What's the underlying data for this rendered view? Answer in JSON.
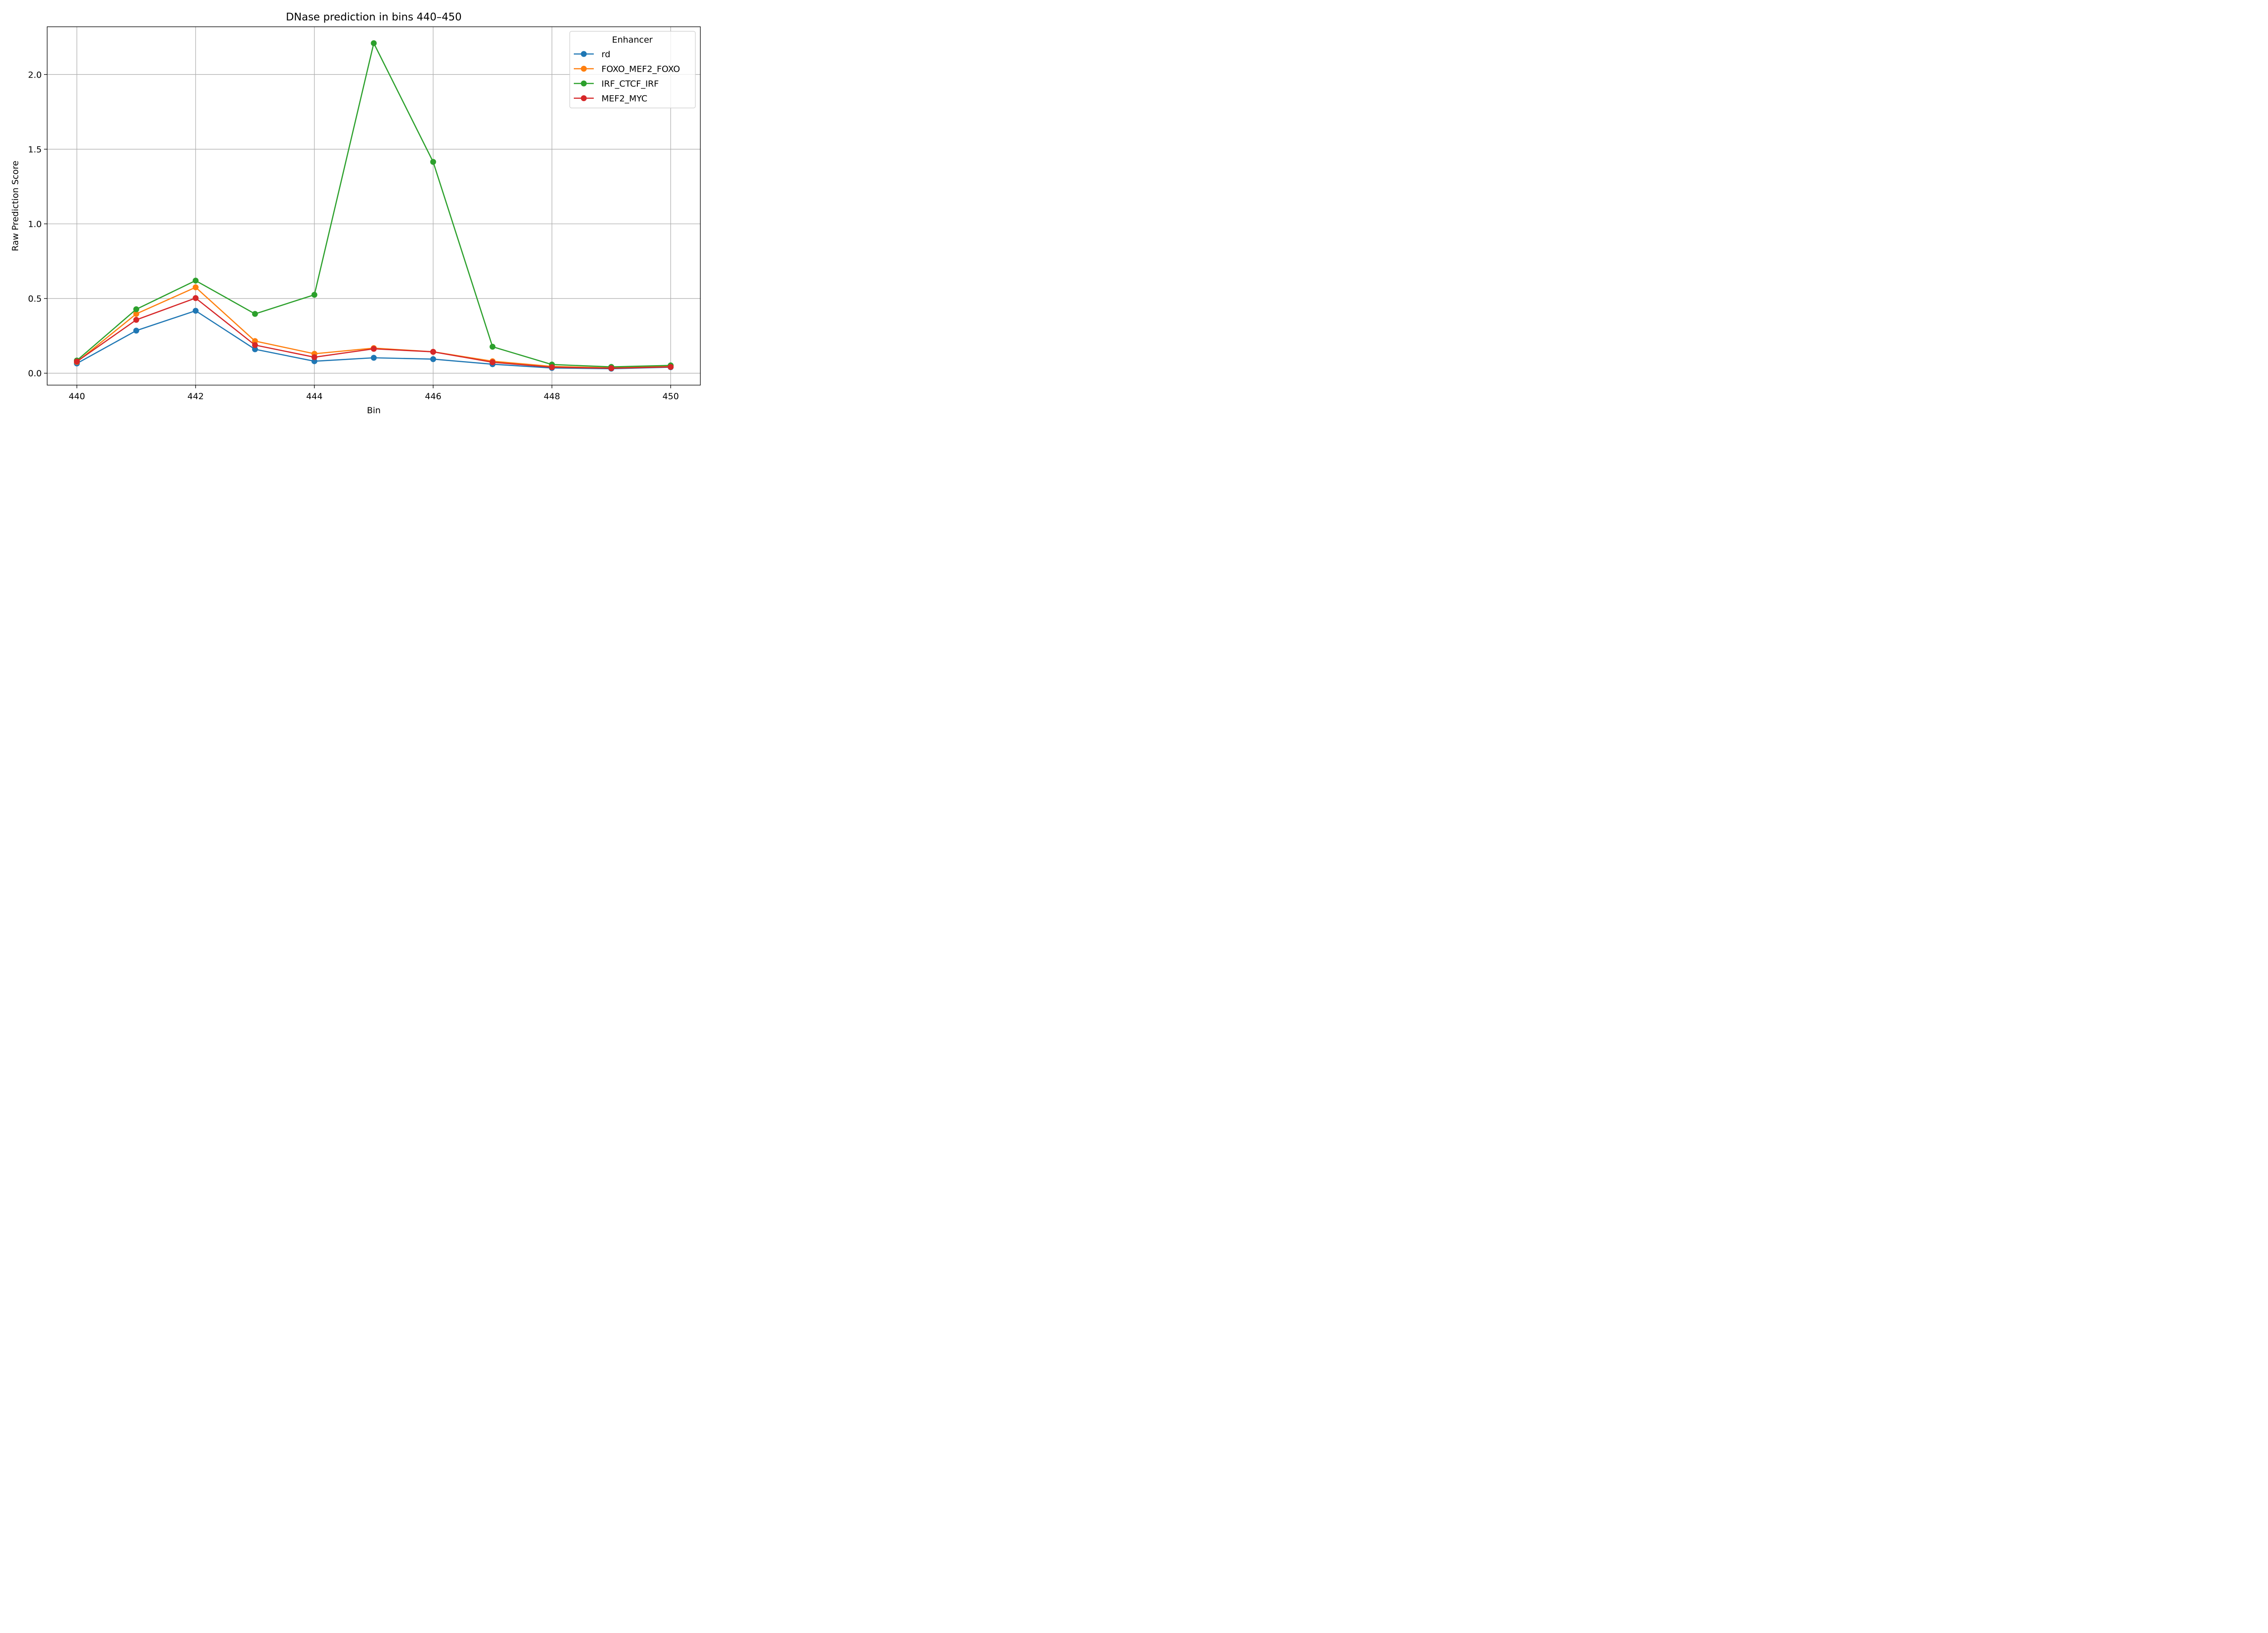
{
  "chart_data": {
    "type": "line",
    "title": "DNase prediction in bins 440–450",
    "xlabel": "Bin",
    "ylabel": "Raw Prediction Score",
    "x": [
      440,
      441,
      442,
      443,
      444,
      445,
      446,
      447,
      448,
      449,
      450
    ],
    "xticks": [
      "440",
      "442",
      "444",
      "446",
      "448",
      "450"
    ],
    "yticks": [
      "0.0",
      "0.5",
      "1.0",
      "1.5",
      "2.0"
    ],
    "xlim": [
      439.5,
      450.5
    ],
    "ylim": [
      -0.08,
      2.32
    ],
    "grid": true,
    "legend": {
      "title": "Enhancer",
      "placement": "top-right"
    },
    "series": [
      {
        "name": "rd",
        "color": "#1f77b4",
        "values": [
          0.065,
          0.285,
          0.418,
          0.16,
          0.08,
          0.103,
          0.094,
          0.06,
          0.035,
          0.03,
          0.04
        ]
      },
      {
        "name": "FOXO_MEF2_FOXO",
        "color": "#ff7f0e",
        "values": [
          0.075,
          0.397,
          0.575,
          0.215,
          0.13,
          0.168,
          0.143,
          0.08,
          0.045,
          0.035,
          0.045
        ]
      },
      {
        "name": "IRF_CTCF_IRF",
        "color": "#2ca02c",
        "values": [
          0.085,
          0.428,
          0.62,
          0.397,
          0.525,
          2.21,
          1.415,
          0.177,
          0.058,
          0.042,
          0.052
        ]
      },
      {
        "name": "MEF2_MYC",
        "color": "#d62728",
        "values": [
          0.078,
          0.357,
          0.503,
          0.188,
          0.107,
          0.163,
          0.143,
          0.073,
          0.04,
          0.033,
          0.042
        ]
      }
    ]
  }
}
